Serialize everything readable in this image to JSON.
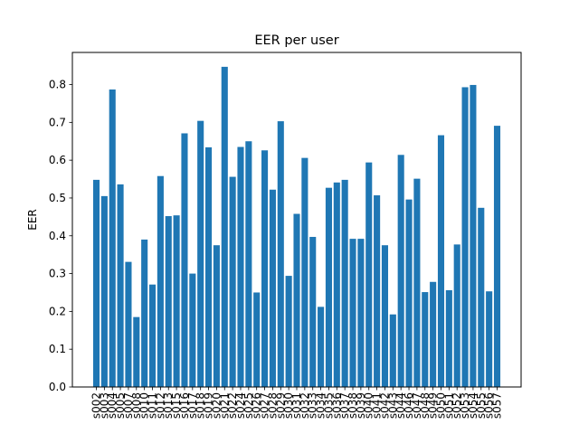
{
  "chart_data": {
    "type": "bar",
    "title": "EER per user",
    "xlabel": "",
    "ylabel": "EER",
    "ylim": [
      0,
      0.885
    ],
    "yticks": [
      "0.0",
      "0.1",
      "0.2",
      "0.3",
      "0.4",
      "0.5",
      "0.6",
      "0.7",
      "0.8"
    ],
    "grid": false,
    "bar_color": "#1f77b4",
    "categories": [
      "s002",
      "s003",
      "s004",
      "s005",
      "s007",
      "s008",
      "s010",
      "s011",
      "s012",
      "s013",
      "s015",
      "s016",
      "s017",
      "s018",
      "s019",
      "s020",
      "s021",
      "s022",
      "s024",
      "s025",
      "s026",
      "s027",
      "s028",
      "s029",
      "s030",
      "s031",
      "s032",
      "s033",
      "s034",
      "s035",
      "s036",
      "s037",
      "s038",
      "s039",
      "s040",
      "s041",
      "s042",
      "s043",
      "s044",
      "s046",
      "s047",
      "s048",
      "s049",
      "s050",
      "s051",
      "s052",
      "s053",
      "s054",
      "s055",
      "s056",
      "s057"
    ],
    "values": [
      0.548,
      0.505,
      0.787,
      0.536,
      0.331,
      0.185,
      0.39,
      0.271,
      0.558,
      0.452,
      0.454,
      0.671,
      0.3,
      0.704,
      0.634,
      0.375,
      0.847,
      0.556,
      0.635,
      0.65,
      0.25,
      0.626,
      0.522,
      0.703,
      0.294,
      0.458,
      0.606,
      0.397,
      0.212,
      0.527,
      0.541,
      0.548,
      0.392,
      0.392,
      0.594,
      0.507,
      0.375,
      0.192,
      0.614,
      0.496,
      0.551,
      0.251,
      0.278,
      0.666,
      0.256,
      0.377,
      0.793,
      0.799,
      0.474,
      0.253,
      0.691
    ]
  }
}
